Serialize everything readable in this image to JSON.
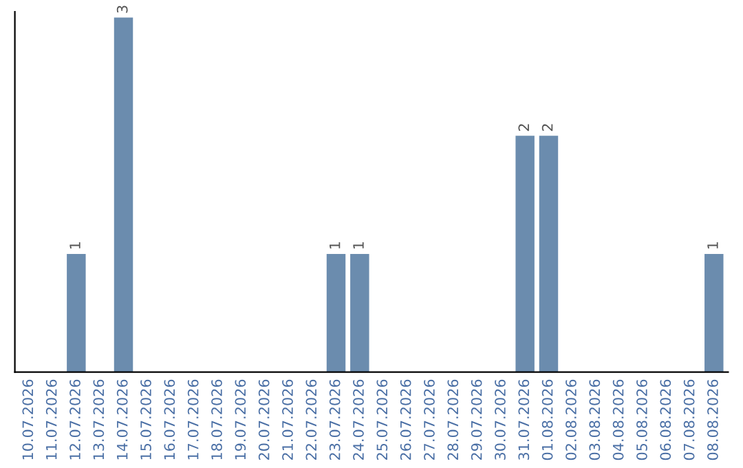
{
  "chart_data": {
    "type": "bar",
    "categories": [
      "10.07.2026",
      "11.07.2026",
      "12.07.2026",
      "13.07.2026",
      "14.07.2026",
      "15.07.2026",
      "16.07.2026",
      "17.07.2026",
      "18.07.2026",
      "19.07.2026",
      "20.07.2026",
      "21.07.2026",
      "22.07.2026",
      "23.07.2026",
      "24.07.2026",
      "25.07.2026",
      "26.07.2026",
      "27.07.2026",
      "28.07.2026",
      "29.07.2026",
      "30.07.2026",
      "31.07.2026",
      "01.08.2026",
      "02.08.2026",
      "03.08.2026",
      "04.08.2026",
      "05.08.2026",
      "06.08.2026",
      "07.08.2026",
      "08.08.2026"
    ],
    "values": [
      0,
      0,
      1,
      0,
      3,
      0,
      0,
      0,
      0,
      0,
      0,
      0,
      0,
      1,
      1,
      0,
      0,
      0,
      0,
      0,
      0,
      2,
      2,
      0,
      0,
      0,
      0,
      0,
      0,
      1
    ],
    "value_labels": [
      null,
      null,
      "1",
      null,
      "3",
      null,
      null,
      null,
      null,
      null,
      null,
      null,
      null,
      "1",
      "1",
      null,
      null,
      null,
      null,
      null,
      null,
      "2",
      "2",
      null,
      null,
      null,
      null,
      null,
      null,
      "1"
    ],
    "color": "#6b8cae",
    "ylim": [
      0,
      3.05
    ],
    "tick_labels": "x",
    "grid": false,
    "legend": false
  }
}
